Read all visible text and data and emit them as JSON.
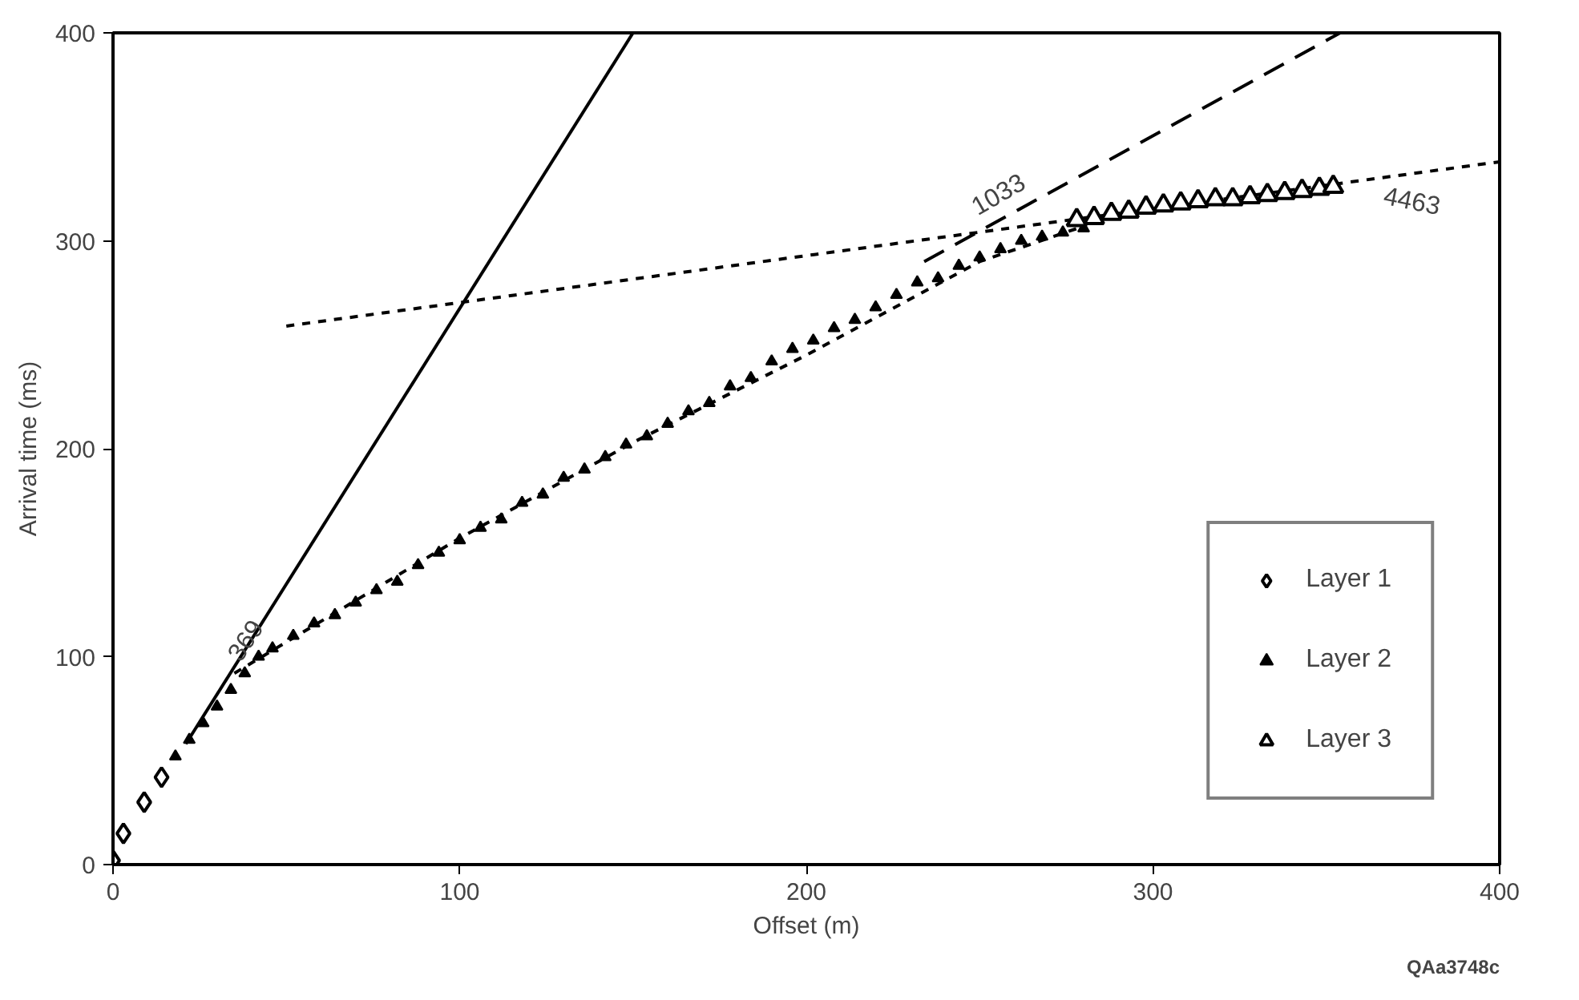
{
  "chart_data": {
    "type": "scatter",
    "xlabel": "Offset (m)",
    "ylabel": "Arrival time (ms)",
    "xlim": [
      0,
      400
    ],
    "ylim": [
      0,
      400
    ],
    "xticks": [
      0,
      100,
      200,
      300,
      400
    ],
    "yticks": [
      0,
      100,
      200,
      300,
      400
    ],
    "grid": false,
    "legend": "bottom right",
    "series": [
      {
        "type": "line",
        "color": "#000000",
        "line_style": "solid",
        "x": [
          21,
          150
        ],
        "values": [
          58,
          400
        ]
      },
      {
        "type": "line",
        "color": "#000000",
        "line_style": "dashed",
        "x": [
          234,
          354
        ],
        "values": [
          290,
          400
        ]
      },
      {
        "type": "line",
        "color": "#000000",
        "line_style": "dotted",
        "x": [
          50,
          400
        ],
        "values": [
          259,
          338
        ]
      },
      {
        "type": "line",
        "color": "#000000",
        "line_style": "dotted",
        "x": [
          35,
          100,
          150,
          200,
          250,
          280
        ],
        "values": [
          92,
          157,
          203,
          245,
          290,
          307
        ]
      },
      {
        "name": "Layer 1",
        "color": "#000000",
        "marker": "diamond",
        "x": [
          0,
          3,
          9,
          14
        ],
        "values": [
          2,
          15,
          30,
          42
        ]
      },
      {
        "name": "Layer 2",
        "color": "#000000",
        "marker": "triangle",
        "x": [
          18,
          22,
          26,
          30,
          34,
          38,
          42,
          46,
          52,
          58,
          64,
          70,
          76,
          82,
          88,
          94,
          100,
          106,
          112,
          118,
          124,
          130,
          136,
          142,
          148,
          154,
          160,
          166,
          172,
          178,
          184,
          190,
          196,
          202,
          208,
          214,
          220,
          226,
          232,
          238,
          244,
          250,
          256,
          262,
          268,
          274,
          280
        ],
        "values": [
          52,
          60,
          68,
          76,
          84,
          92,
          100,
          104,
          110,
          116,
          120,
          126,
          132,
          136,
          144,
          150,
          156,
          162,
          166,
          174,
          178,
          186,
          190,
          196,
          202,
          206,
          212,
          218,
          222,
          230,
          234,
          242,
          248,
          252,
          258,
          262,
          268,
          274,
          280,
          282,
          288,
          292,
          296,
          300,
          302,
          304,
          306
        ]
      },
      {
        "name": "Layer 3",
        "color": "#000000",
        "marker": "triangle_open",
        "x": [
          278,
          283,
          288,
          293,
          298,
          303,
          308,
          313,
          318,
          323,
          328,
          333,
          338,
          343,
          348,
          352
        ],
        "values": [
          310,
          311,
          313,
          314,
          316,
          317,
          318,
          319,
          320,
          320,
          321,
          322,
          323,
          324,
          325,
          326
        ]
      }
    ],
    "annotations": [
      {
        "text": "369",
        "x": 38,
        "y": 108
      },
      {
        "text": "1033",
        "x": 258,
        "y": 312
      },
      {
        "text": "4463",
        "x": 372,
        "y": 332
      },
      "QAa3748c"
    ]
  }
}
